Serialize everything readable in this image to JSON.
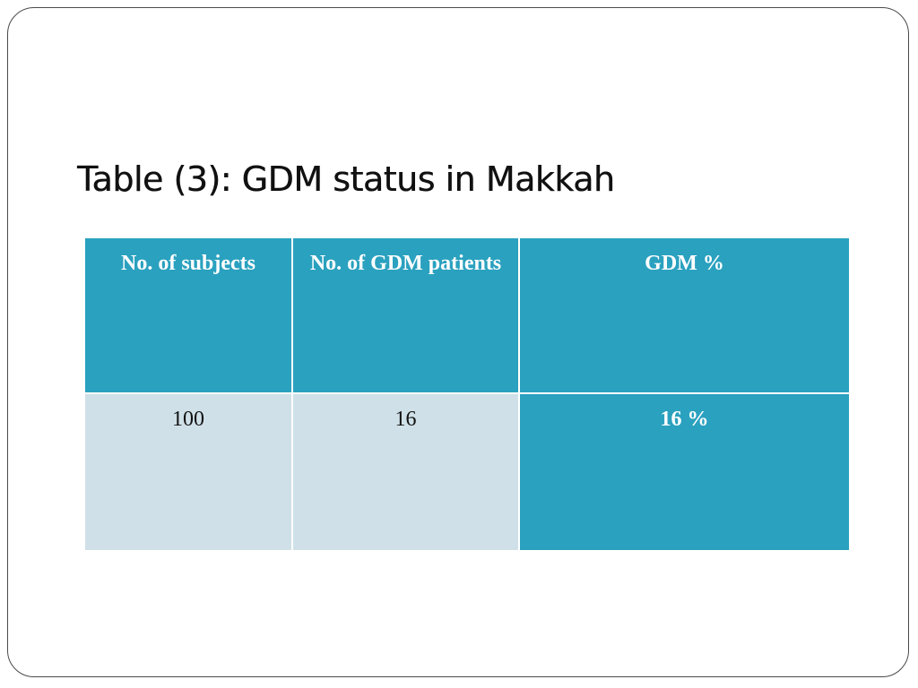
{
  "slide": {
    "title": "Table (3):  GDM status in Makkah"
  },
  "table": {
    "headers": [
      "No. of subjects",
      "No. of GDM patients",
      "GDM  %"
    ],
    "rows": [
      [
        "100",
        "16",
        "16 %"
      ]
    ]
  }
}
